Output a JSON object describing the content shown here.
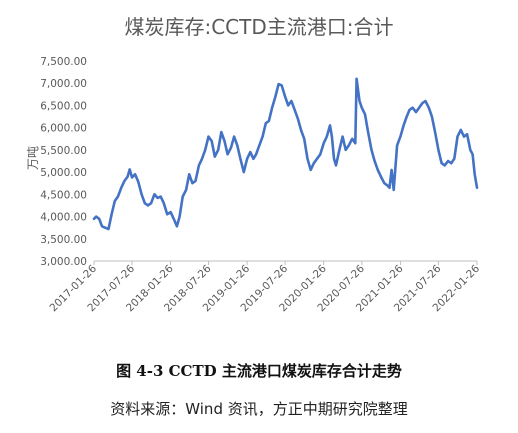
{
  "caption": "图 4-3 CCTD 主流港口煤炭库存合计走势",
  "source": "资料来源：Wind 资讯，方正中期研究院整理",
  "colors": {
    "line": "#4472C4",
    "text": "#595959",
    "axis": "#BFBFBF"
  },
  "chart_data": {
    "type": "line",
    "title": "煤炭库存:CCTD主流港口:合计",
    "xlabel": "",
    "ylabel": "万吨",
    "ylim": [
      3000,
      7500
    ],
    "yticks": [
      "3,000.00",
      "3,500.00",
      "4,000.00",
      "4,500.00",
      "5,000.00",
      "5,500.00",
      "6,000.00",
      "6,500.00",
      "7,000.00",
      "7,500.00"
    ],
    "xticks": [
      "2017-01-26",
      "2017-07-26",
      "2018-01-26",
      "2018-07-26",
      "2019-01-26",
      "2019-07-26",
      "2020-01-26",
      "2020-07-26",
      "2021-01-26",
      "2021-07-26",
      "2022-01-26"
    ],
    "grid": false,
    "legend": "none",
    "series": [
      {
        "name": "",
        "points": [
          [
            "2017-01-26",
            3950
          ],
          [
            "2017-02-05",
            4000
          ],
          [
            "2017-02-20",
            3950
          ],
          [
            "2017-03-05",
            3780
          ],
          [
            "2017-03-20",
            3750
          ],
          [
            "2017-04-05",
            3720
          ],
          [
            "2017-04-20",
            4050
          ],
          [
            "2017-05-05",
            4350
          ],
          [
            "2017-05-20",
            4450
          ],
          [
            "2017-06-05",
            4650
          ],
          [
            "2017-06-20",
            4800
          ],
          [
            "2017-07-05",
            4900
          ],
          [
            "2017-07-15",
            5060
          ],
          [
            "2017-07-26",
            4880
          ],
          [
            "2017-08-10",
            4950
          ],
          [
            "2017-08-25",
            4780
          ],
          [
            "2017-09-10",
            4500
          ],
          [
            "2017-09-25",
            4300
          ],
          [
            "2017-10-10",
            4250
          ],
          [
            "2017-10-25",
            4300
          ],
          [
            "2017-11-10",
            4500
          ],
          [
            "2017-11-25",
            4420
          ],
          [
            "2017-12-10",
            4450
          ],
          [
            "2017-12-25",
            4300
          ],
          [
            "2018-01-10",
            4050
          ],
          [
            "2018-01-26",
            4100
          ],
          [
            "2018-02-10",
            3950
          ],
          [
            "2018-02-25",
            3780
          ],
          [
            "2018-03-10",
            4000
          ],
          [
            "2018-03-25",
            4450
          ],
          [
            "2018-04-10",
            4600
          ],
          [
            "2018-04-25",
            4950
          ],
          [
            "2018-05-10",
            4750
          ],
          [
            "2018-05-25",
            4800
          ],
          [
            "2018-06-10",
            5150
          ],
          [
            "2018-06-25",
            5300
          ],
          [
            "2018-07-10",
            5500
          ],
          [
            "2018-07-26",
            5800
          ],
          [
            "2018-08-10",
            5700
          ],
          [
            "2018-08-25",
            5350
          ],
          [
            "2018-09-10",
            5500
          ],
          [
            "2018-09-25",
            5900
          ],
          [
            "2018-10-10",
            5700
          ],
          [
            "2018-10-25",
            5400
          ],
          [
            "2018-11-10",
            5550
          ],
          [
            "2018-11-25",
            5800
          ],
          [
            "2018-12-10",
            5600
          ],
          [
            "2018-12-25",
            5300
          ],
          [
            "2019-01-10",
            5000
          ],
          [
            "2019-01-26",
            5300
          ],
          [
            "2019-02-10",
            5450
          ],
          [
            "2019-02-25",
            5300
          ],
          [
            "2019-03-10",
            5400
          ],
          [
            "2019-03-25",
            5600
          ],
          [
            "2019-04-10",
            5800
          ],
          [
            "2019-04-25",
            6100
          ],
          [
            "2019-05-10",
            6150
          ],
          [
            "2019-05-25",
            6450
          ],
          [
            "2019-06-10",
            6700
          ],
          [
            "2019-06-25",
            6980
          ],
          [
            "2019-07-10",
            6950
          ],
          [
            "2019-07-26",
            6700
          ],
          [
            "2019-08-10",
            6500
          ],
          [
            "2019-08-25",
            6600
          ],
          [
            "2019-09-10",
            6400
          ],
          [
            "2019-09-25",
            6200
          ],
          [
            "2019-10-10",
            5950
          ],
          [
            "2019-10-25",
            5750
          ],
          [
            "2019-11-10",
            5300
          ],
          [
            "2019-11-25",
            5050
          ],
          [
            "2019-12-10",
            5200
          ],
          [
            "2019-12-25",
            5300
          ],
          [
            "2020-01-10",
            5400
          ],
          [
            "2020-01-26",
            5650
          ],
          [
            "2020-02-10",
            5800
          ],
          [
            "2020-02-25",
            6050
          ],
          [
            "2020-03-05",
            5800
          ],
          [
            "2020-03-15",
            5300
          ],
          [
            "2020-03-25",
            5150
          ],
          [
            "2020-04-10",
            5500
          ],
          [
            "2020-04-25",
            5800
          ],
          [
            "2020-05-10",
            5500
          ],
          [
            "2020-05-25",
            5600
          ],
          [
            "2020-06-10",
            5750
          ],
          [
            "2020-06-25",
            5650
          ],
          [
            "2020-07-01",
            7100
          ],
          [
            "2020-07-15",
            6600
          ],
          [
            "2020-07-26",
            6450
          ],
          [
            "2020-08-10",
            6300
          ],
          [
            "2020-08-25",
            5900
          ],
          [
            "2020-09-10",
            5500
          ],
          [
            "2020-09-25",
            5250
          ],
          [
            "2020-10-10",
            5050
          ],
          [
            "2020-10-25",
            4900
          ],
          [
            "2020-11-10",
            4750
          ],
          [
            "2020-11-25",
            4700
          ],
          [
            "2020-12-05",
            4650
          ],
          [
            "2020-12-15",
            5050
          ],
          [
            "2020-12-25",
            4600
          ],
          [
            "2021-01-10",
            5600
          ],
          [
            "2021-01-26",
            5800
          ],
          [
            "2021-02-10",
            6050
          ],
          [
            "2021-02-25",
            6250
          ],
          [
            "2021-03-10",
            6400
          ],
          [
            "2021-03-25",
            6450
          ],
          [
            "2021-04-10",
            6350
          ],
          [
            "2021-04-25",
            6450
          ],
          [
            "2021-05-10",
            6550
          ],
          [
            "2021-05-25",
            6600
          ],
          [
            "2021-06-10",
            6450
          ],
          [
            "2021-06-25",
            6250
          ],
          [
            "2021-07-10",
            5900
          ],
          [
            "2021-07-26",
            5500
          ],
          [
            "2021-08-10",
            5200
          ],
          [
            "2021-08-25",
            5150
          ],
          [
            "2021-09-10",
            5250
          ],
          [
            "2021-09-25",
            5200
          ],
          [
            "2021-10-10",
            5300
          ],
          [
            "2021-10-25",
            5800
          ],
          [
            "2021-11-10",
            5950
          ],
          [
            "2021-11-25",
            5800
          ],
          [
            "2021-12-10",
            5850
          ],
          [
            "2021-12-25",
            5500
          ],
          [
            "2022-01-05",
            5400
          ],
          [
            "2022-01-15",
            4950
          ],
          [
            "2022-01-26",
            4650
          ]
        ]
      }
    ]
  }
}
